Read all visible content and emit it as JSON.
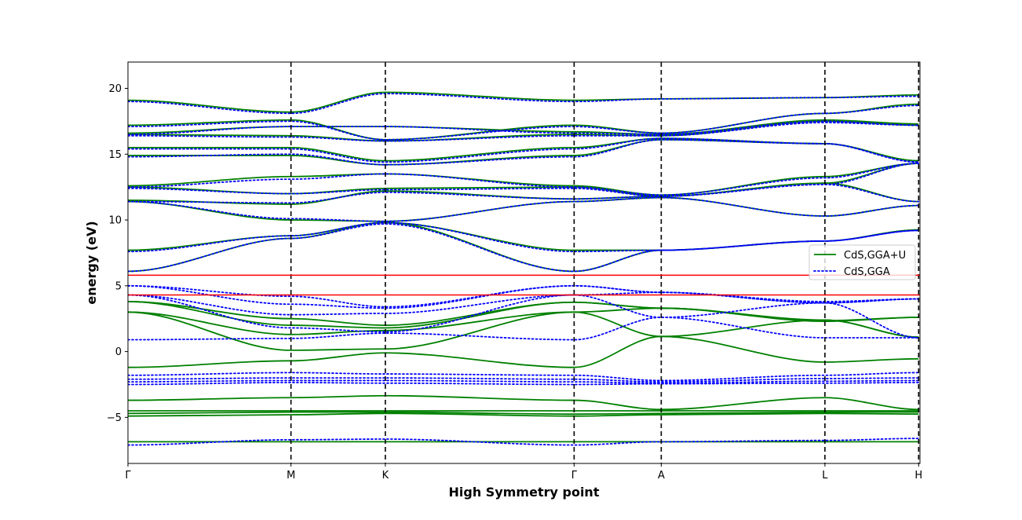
{
  "chart_data": {
    "type": "line",
    "title": "",
    "xlabel": "High Symmetry point",
    "ylabel": "energy (eV)",
    "ylim": [
      -8.5,
      22.0
    ],
    "xlim": [
      0,
      6.0
    ],
    "yticks": [
      -5,
      0,
      5,
      10,
      15,
      20
    ],
    "grid": false,
    "legend_position": "center-right",
    "high_symmetry_points": [
      {
        "label": "Γ",
        "x": 0.0
      },
      {
        "label": "M",
        "x": 1.235
      },
      {
        "label": "K",
        "x": 1.95
      },
      {
        "label": "Γ",
        "x": 3.38
      },
      {
        "label": "A",
        "x": 4.04
      },
      {
        "label": "L",
        "x": 5.28
      },
      {
        "label": "H",
        "x": 5.99
      }
    ],
    "reference_lines": [
      {
        "y": 5.8,
        "color": "#ff0000"
      },
      {
        "y": 4.3,
        "color": "#ff0000"
      }
    ],
    "series": [
      {
        "name": "CdS,GGA+U",
        "color": "#008000",
        "style": "solid",
        "bands": [
          [
            -6.85,
            -6.85,
            -6.85,
            -6.85,
            -6.85,
            -6.85,
            -6.85
          ],
          [
            -4.9,
            -4.8,
            -4.7,
            -4.9,
            -4.8,
            -4.7,
            -4.75
          ],
          [
            -4.7,
            -4.6,
            -4.6,
            -4.75,
            -4.7,
            -4.6,
            -4.6
          ],
          [
            -4.5,
            -4.5,
            -4.5,
            -4.5,
            -4.5,
            -4.5,
            -4.5
          ],
          [
            -3.7,
            -3.5,
            -3.35,
            -3.7,
            -4.4,
            -3.5,
            -4.4
          ],
          [
            -1.2,
            -0.7,
            -0.1,
            -1.2,
            1.15,
            -0.8,
            -0.55
          ],
          [
            3.0,
            0.1,
            0.2,
            3.0,
            1.15,
            2.4,
            1.1
          ],
          [
            3.0,
            1.3,
            1.6,
            3.0,
            3.3,
            2.3,
            2.6
          ],
          [
            3.8,
            2.0,
            1.8,
            3.75,
            3.3,
            2.4,
            1.1
          ],
          [
            3.8,
            2.5,
            2.0,
            3.75,
            3.3,
            2.35,
            2.6
          ],
          [
            6.1,
            8.6,
            9.8,
            6.1,
            7.7,
            8.4,
            9.25
          ],
          [
            7.7,
            8.8,
            9.8,
            7.7,
            7.7,
            8.4,
            9.25
          ],
          [
            11.4,
            10.0,
            9.9,
            11.4,
            11.7,
            10.3,
            11.1
          ],
          [
            11.5,
            11.2,
            12.2,
            11.6,
            11.8,
            12.8,
            11.4
          ],
          [
            12.5,
            12.0,
            12.4,
            12.5,
            11.8,
            12.8,
            14.3
          ],
          [
            12.6,
            13.3,
            13.5,
            12.6,
            11.9,
            13.3,
            14.3
          ],
          [
            14.9,
            14.9,
            14.2,
            14.9,
            16.1,
            15.8,
            14.5
          ],
          [
            15.5,
            15.5,
            14.5,
            15.5,
            16.2,
            15.8,
            14.5
          ],
          [
            16.5,
            16.4,
            16.0,
            16.5,
            16.4,
            17.5,
            17.2
          ],
          [
            16.6,
            17.1,
            17.1,
            16.7,
            16.5,
            17.6,
            17.3
          ],
          [
            17.2,
            17.6,
            16.1,
            17.2,
            16.6,
            18.1,
            18.8
          ],
          [
            19.1,
            18.2,
            19.7,
            19.1,
            19.2,
            19.3,
            19.5
          ]
        ]
      },
      {
        "name": "CdS,GGA",
        "color": "#0000ff",
        "style": "dotted",
        "bands": [
          [
            -7.1,
            -6.7,
            -6.65,
            -7.1,
            -6.85,
            -6.75,
            -6.6
          ],
          [
            -2.5,
            -2.35,
            -2.4,
            -2.5,
            -2.45,
            -2.4,
            -2.35
          ],
          [
            -2.3,
            -2.2,
            -2.2,
            -2.3,
            -2.4,
            -2.25,
            -2.2
          ],
          [
            -2.1,
            -2.0,
            -2.0,
            -2.1,
            -2.3,
            -2.05,
            -2.0
          ],
          [
            -1.8,
            -1.6,
            -1.7,
            -1.8,
            -2.2,
            -1.8,
            -1.6
          ],
          [
            0.9,
            1.0,
            1.4,
            0.9,
            2.6,
            1.05,
            1.05
          ],
          [
            4.3,
            1.8,
            1.5,
            4.3,
            2.6,
            3.7,
            1.05
          ],
          [
            4.3,
            2.8,
            2.9,
            4.3,
            4.5,
            3.7,
            4.0
          ],
          [
            5.0,
            3.6,
            3.3,
            5.0,
            4.5,
            3.7,
            4.0
          ],
          [
            5.0,
            4.2,
            3.4,
            5.0,
            4.5,
            3.8,
            4.0
          ],
          [
            6.1,
            8.6,
            9.7,
            6.1,
            7.7,
            8.4,
            9.2
          ],
          [
            7.6,
            8.8,
            9.8,
            7.6,
            7.7,
            8.4,
            9.2
          ],
          [
            11.4,
            10.1,
            9.9,
            11.4,
            11.7,
            10.3,
            11.1
          ],
          [
            11.4,
            11.3,
            12.1,
            11.6,
            11.8,
            12.7,
            11.4
          ],
          [
            12.4,
            12.0,
            12.3,
            12.4,
            11.8,
            12.7,
            14.3
          ],
          [
            12.5,
            13.1,
            13.5,
            12.5,
            11.9,
            13.2,
            14.3
          ],
          [
            14.8,
            15.0,
            14.2,
            14.8,
            16.1,
            15.8,
            14.4
          ],
          [
            15.4,
            15.4,
            14.4,
            15.4,
            16.2,
            15.8,
            14.4
          ],
          [
            16.4,
            16.3,
            16.0,
            16.4,
            16.4,
            17.4,
            17.2
          ],
          [
            16.5,
            17.1,
            17.1,
            16.6,
            16.5,
            17.5,
            17.2
          ],
          [
            17.1,
            17.5,
            16.1,
            17.1,
            16.6,
            18.1,
            18.7
          ],
          [
            19.0,
            18.1,
            19.6,
            19.0,
            19.2,
            19.3,
            19.4
          ]
        ]
      }
    ]
  }
}
